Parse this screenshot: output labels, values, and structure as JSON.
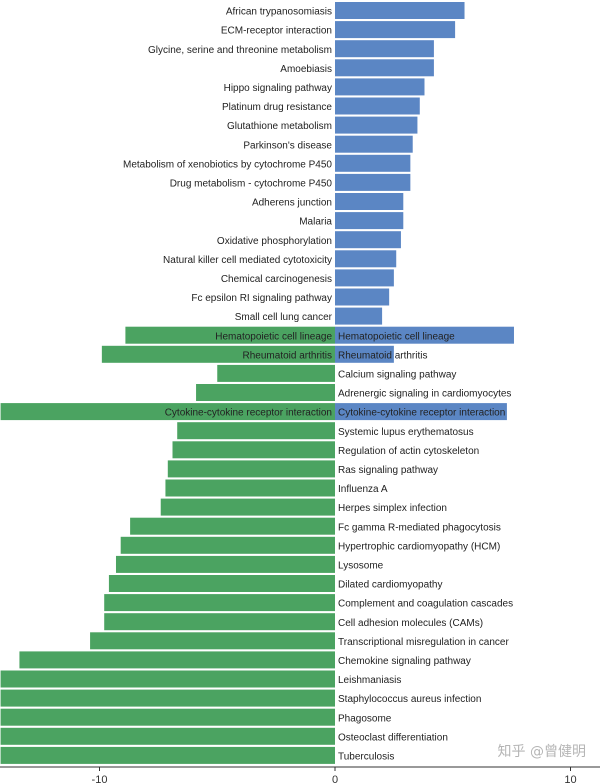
{
  "chart_data": {
    "type": "bar",
    "orientation": "horizontal",
    "xlim": [
      -14.2,
      11.0
    ],
    "xticks": [
      -10,
      0,
      10
    ],
    "colors": {
      "up": "#5b86c4",
      "down": "#4ba361"
    },
    "categories": [
      {
        "label": "African trypanosomiasis",
        "up": 5.5
      },
      {
        "label": "ECM-receptor interaction",
        "up": 5.1
      },
      {
        "label": "Glycine, serine and threonine metabolism",
        "up": 4.2
      },
      {
        "label": "Amoebiasis",
        "up": 4.2
      },
      {
        "label": "Hippo signaling pathway",
        "up": 3.8
      },
      {
        "label": "Platinum drug resistance",
        "up": 3.6
      },
      {
        "label": "Glutathione metabolism",
        "up": 3.5
      },
      {
        "label": "Parkinson's disease",
        "up": 3.3
      },
      {
        "label": "Metabolism of xenobiotics by cytochrome P450",
        "up": 3.2
      },
      {
        "label": "Drug metabolism - cytochrome P450",
        "up": 3.2
      },
      {
        "label": "Adherens junction",
        "up": 2.9
      },
      {
        "label": "Malaria",
        "up": 2.9
      },
      {
        "label": "Oxidative phosphorylation",
        "up": 2.8
      },
      {
        "label": "Natural killer cell mediated cytotoxicity",
        "up": 2.6
      },
      {
        "label": "Chemical carcinogenesis",
        "up": 2.5
      },
      {
        "label": "Fc epsilon RI signaling pathway",
        "up": 2.3
      },
      {
        "label": "Small cell lung cancer",
        "up": 2.0
      },
      {
        "label": "Hematopoietic cell lineage",
        "up": 7.6,
        "down": -8.9
      },
      {
        "label": "Rheumatoid arthritis",
        "up": 2.5,
        "down": -9.9
      },
      {
        "label": "Calcium signaling pathway",
        "down": -5.0
      },
      {
        "label": "Adrenergic signaling in cardiomyocytes",
        "down": -5.9
      },
      {
        "label": "Cytokine-cytokine receptor interaction",
        "up": 7.3,
        "down": -14.2
      },
      {
        "label": "Systemic lupus erythematosus",
        "down": -6.7
      },
      {
        "label": "Regulation of actin cytoskeleton",
        "down": -6.9
      },
      {
        "label": "Ras signaling pathway",
        "down": -7.1
      },
      {
        "label": "Influenza A",
        "down": -7.2
      },
      {
        "label": "Herpes simplex infection",
        "down": -7.4
      },
      {
        "label": "Fc gamma R-mediated phagocytosis",
        "down": -8.7
      },
      {
        "label": "Hypertrophic cardiomyopathy (HCM)",
        "down": -9.1
      },
      {
        "label": "Lysosome",
        "down": -9.3
      },
      {
        "label": "Dilated cardiomyopathy",
        "down": -9.6
      },
      {
        "label": "Complement and coagulation cascades",
        "down": -9.8
      },
      {
        "label": "Cell adhesion molecules (CAMs)",
        "down": -9.8
      },
      {
        "label": "Transcriptional misregulation in cancer",
        "down": -10.4
      },
      {
        "label": "Chemokine signaling pathway",
        "down": -13.4
      },
      {
        "label": "Leishmaniasis",
        "down": -14.2
      },
      {
        "label": "Staphylococcus aureus infection",
        "down": -14.2
      },
      {
        "label": "Phagosome",
        "down": -14.2
      },
      {
        "label": "Osteoclast differentiation",
        "down": -14.2
      },
      {
        "label": "Tuberculosis",
        "down": -14.2
      }
    ]
  },
  "watermark": "知乎 @曾健明"
}
